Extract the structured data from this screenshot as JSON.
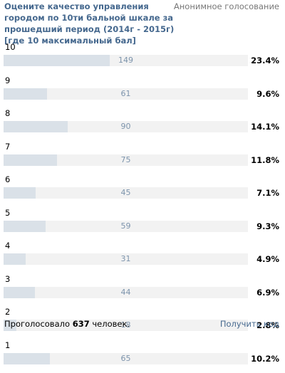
{
  "poll": {
    "title": "Оцените качество управления городом по 10ти бальной шкале за прошедший период (2014г - 2015г) [где 10 максимальный бал]",
    "type_label": "Анонимное голосование",
    "options": [
      {
        "label": "10",
        "votes": "149",
        "percent": "23.4%",
        "fraction": 0.434
      },
      {
        "label": "9",
        "votes": "61",
        "percent": "9.6%",
        "fraction": 0.178
      },
      {
        "label": "8",
        "votes": "90",
        "percent": "14.1%",
        "fraction": 0.262
      },
      {
        "label": "7",
        "votes": "75",
        "percent": "11.8%",
        "fraction": 0.219
      },
      {
        "label": "6",
        "votes": "45",
        "percent": "7.1%",
        "fraction": 0.131
      },
      {
        "label": "5",
        "votes": "59",
        "percent": "9.3%",
        "fraction": 0.172
      },
      {
        "label": "4",
        "votes": "31",
        "percent": "4.9%",
        "fraction": 0.09
      },
      {
        "label": "3",
        "votes": "44",
        "percent": "6.9%",
        "fraction": 0.128
      },
      {
        "label": "2",
        "votes": "18",
        "percent": "2.8%",
        "fraction": 0.052
      },
      {
        "label": "1",
        "votes": "65",
        "percent": "10.2%",
        "fraction": 0.19
      }
    ],
    "footer": {
      "voted_prefix": "Проголосовало",
      "voted_count": "637",
      "voted_suffix": "человек.",
      "get_code_label": "Получить код"
    }
  },
  "colors": {
    "title": "#45688e",
    "bar_fill": "#dae1e8",
    "bar_track": "#f2f2f2",
    "count_text": "#7d94ac",
    "link": "#45688e"
  }
}
